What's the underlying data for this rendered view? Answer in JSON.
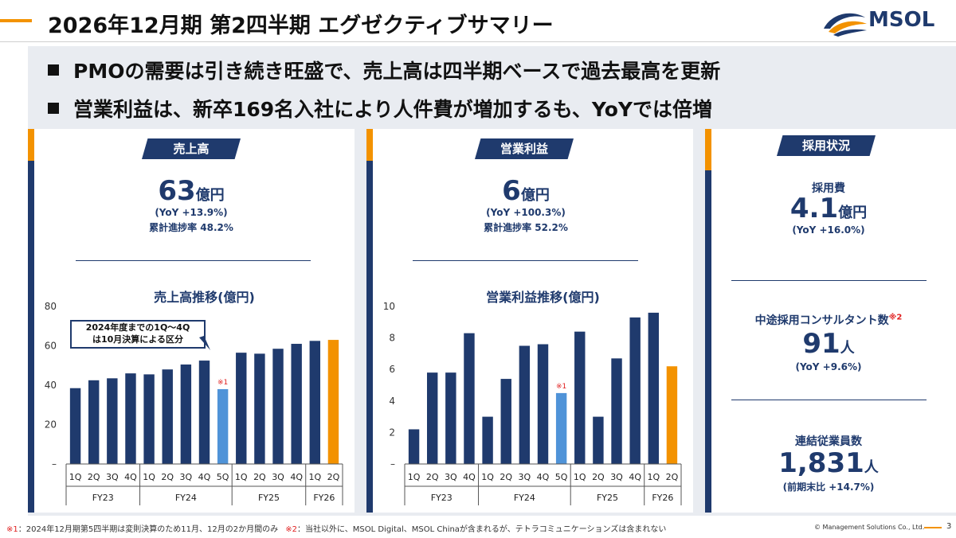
{
  "header": {
    "title": "2026年12月期 第2四半期 エグゼクティブサマリー",
    "logo_text": "MSOL"
  },
  "bullets": [
    "PMOの需要は引き続き旺盛で、売上高は四半期ベースで過去最高を更新",
    "営業利益は、新卒169名入社により人件費が増加するも、YoYでは倍増"
  ],
  "sales_panel": {
    "tag": "売上高",
    "value": "63",
    "unit": "億円",
    "yoy": "(YoY +13.9%)",
    "progress": "累計進捗率 48.2%"
  },
  "profit_panel": {
    "tag": "営業利益",
    "value": "6",
    "unit": "億円",
    "yoy": "(YoY +100.3%)",
    "progress": "累計進捗率 52.2%"
  },
  "hiring_panel": {
    "tag": "採用状況",
    "items": [
      {
        "label": "採用費",
        "value": "4.1",
        "unit": "億円",
        "sub": "(YoY +16.0%)",
        "note": ""
      },
      {
        "label": "中途採用コンサルタント数",
        "value": "91",
        "unit": "人",
        "sub": "(YoY +9.6%)",
        "note": "※2"
      },
      {
        "label": "連結従業員数",
        "value": "1,831",
        "unit": "人",
        "sub": "(前期末比 +14.7%)",
        "note": ""
      }
    ]
  },
  "callout": {
    "line1": "2024年度までの1Q～4Q",
    "line2": "は10月決算による区分"
  },
  "colors": {
    "navy": "#1f3a6d",
    "orange": "#f39200",
    "lightblue": "#4f93d8",
    "red": "#e02020"
  },
  "chart_data": [
    {
      "type": "bar",
      "title": "売上高推移(億円)",
      "ylim": [
        0,
        80
      ],
      "yticks": [
        "–",
        "20",
        "40",
        "60",
        "80"
      ],
      "categories": [
        "1Q",
        "2Q",
        "3Q",
        "4Q",
        "1Q",
        "2Q",
        "3Q",
        "4Q",
        "5Q",
        "1Q",
        "2Q",
        "3Q",
        "4Q",
        "1Q",
        "2Q"
      ],
      "groups": [
        {
          "label": "FY23",
          "span": 4
        },
        {
          "label": "FY24",
          "span": 5
        },
        {
          "label": "FY25",
          "span": 4
        },
        {
          "label": "FY26",
          "span": 2
        }
      ],
      "values": [
        38.5,
        42.5,
        43.5,
        46,
        45.5,
        48,
        50.5,
        52.5,
        38,
        56.5,
        56,
        58.5,
        61,
        62.5,
        63
      ],
      "bar_colors": [
        "navy",
        "navy",
        "navy",
        "navy",
        "navy",
        "navy",
        "navy",
        "navy",
        "lightblue",
        "navy",
        "navy",
        "navy",
        "navy",
        "navy",
        "orange"
      ],
      "annotations": [
        {
          "index": 8,
          "text": "※1"
        }
      ]
    },
    {
      "type": "bar",
      "title": "営業利益推移(億円)",
      "ylim": [
        0,
        10
      ],
      "yticks": [
        "–",
        "2",
        "4",
        "6",
        "8",
        "10"
      ],
      "categories": [
        "1Q",
        "2Q",
        "3Q",
        "4Q",
        "1Q",
        "2Q",
        "3Q",
        "4Q",
        "5Q",
        "1Q",
        "2Q",
        "3Q",
        "4Q",
        "1Q",
        "2Q"
      ],
      "groups": [
        {
          "label": "FY23",
          "span": 4
        },
        {
          "label": "FY24",
          "span": 5
        },
        {
          "label": "FY25",
          "span": 4
        },
        {
          "label": "FY26",
          "span": 2
        }
      ],
      "values": [
        2.2,
        5.8,
        5.8,
        8.3,
        3.0,
        5.4,
        7.5,
        7.6,
        4.5,
        8.4,
        3.0,
        6.7,
        9.3,
        9.6,
        6.2
      ],
      "bar_colors": [
        "navy",
        "navy",
        "navy",
        "navy",
        "navy",
        "navy",
        "navy",
        "navy",
        "lightblue",
        "navy",
        "navy",
        "navy",
        "navy",
        "navy",
        "orange"
      ],
      "annotations": [
        {
          "index": 8,
          "text": "※1"
        }
      ]
    }
  ],
  "footer": {
    "note1_mark": "※1",
    "note1": "：2024年12月期第5四半期は変則決算のため11月、12月の2か月間のみ",
    "note2_mark": "※2",
    "note2": "：当社以外に、MSOL Digital、MSOL Chinaが含まれるが、テトラコミュニケーションズは含まれない",
    "copyright": "© Management Solutions Co., Ltd.",
    "page": "3"
  }
}
